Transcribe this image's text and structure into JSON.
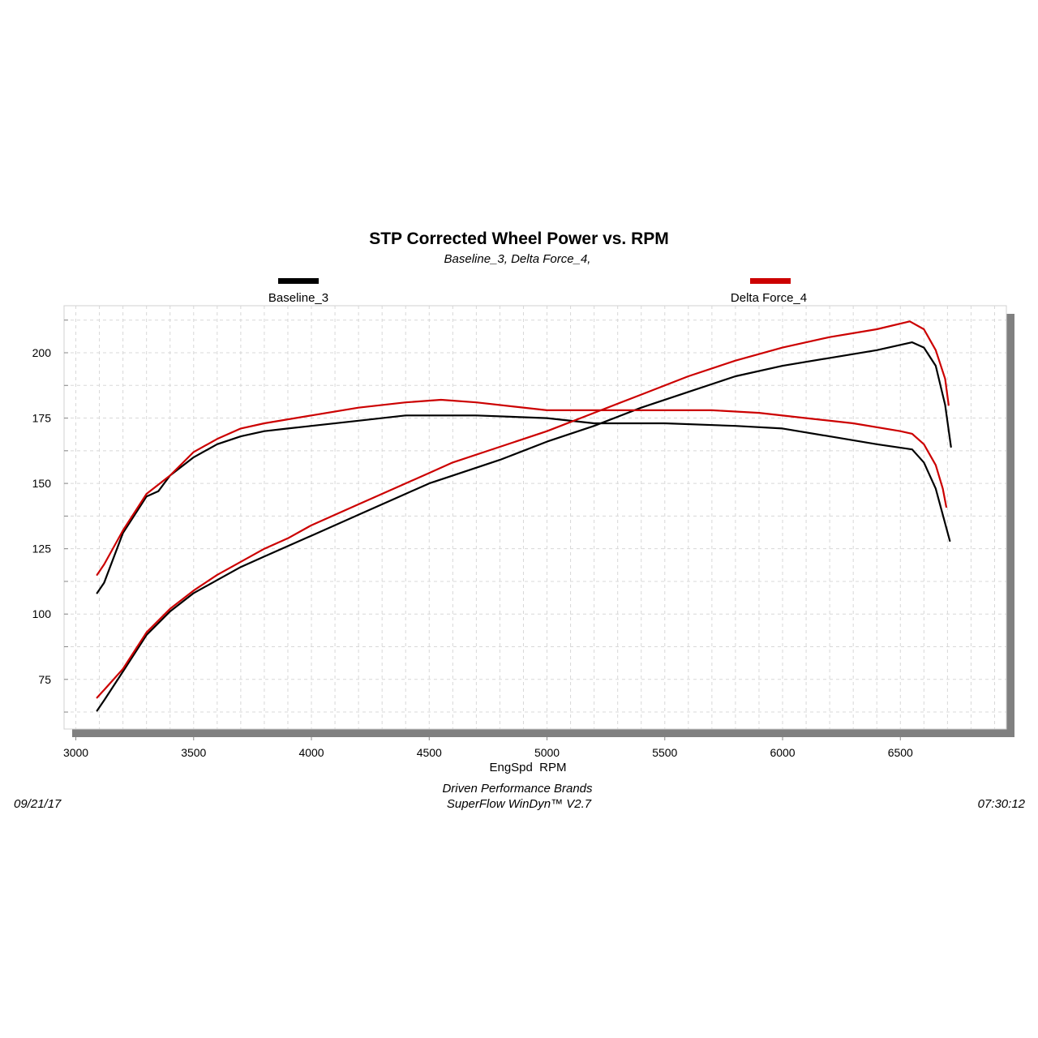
{
  "footer": {
    "date": "09/21/17",
    "time": "07:30:12",
    "company": "Driven Performance Brands",
    "software": "SuperFlow WinDyn™ V2.7"
  },
  "chart_data": {
    "type": "line",
    "title": "STP Corrected Wheel Power vs. RPM",
    "subtitle": "Baseline_3, Delta Force_4,",
    "xlabel": "EngSpd  RPM",
    "ylabel": "",
    "xlim": [
      2950,
      6950
    ],
    "ylim": [
      56,
      218
    ],
    "xticks": [
      3000,
      3500,
      4000,
      4500,
      5000,
      5500,
      6000,
      6500
    ],
    "yticks": [
      75,
      100,
      125,
      150,
      175,
      200
    ],
    "grid": true,
    "legend_placement": "top",
    "colors": {
      "baseline": "#000000",
      "delta": "#cc0000",
      "shadow": "#808080",
      "grid": "#d8d8d8"
    },
    "series": [
      {
        "name": "Baseline_3",
        "curve": "torque",
        "color": "#000000",
        "points": [
          [
            3090,
            108
          ],
          [
            3120,
            112
          ],
          [
            3200,
            131
          ],
          [
            3300,
            145
          ],
          [
            3350,
            147
          ],
          [
            3400,
            153
          ],
          [
            3500,
            160
          ],
          [
            3600,
            165
          ],
          [
            3700,
            168
          ],
          [
            3800,
            170
          ],
          [
            3900,
            171
          ],
          [
            4000,
            172
          ],
          [
            4200,
            174
          ],
          [
            4400,
            176
          ],
          [
            4500,
            176
          ],
          [
            4700,
            176
          ],
          [
            5000,
            175
          ],
          [
            5200,
            173
          ],
          [
            5500,
            173
          ],
          [
            5800,
            172
          ],
          [
            6000,
            171
          ],
          [
            6200,
            168
          ],
          [
            6400,
            165
          ],
          [
            6550,
            163
          ],
          [
            6600,
            158
          ],
          [
            6650,
            148
          ],
          [
            6680,
            138
          ],
          [
            6710,
            128
          ]
        ]
      },
      {
        "name": "Baseline_3",
        "curve": "power",
        "color": "#000000",
        "points": [
          [
            3090,
            63
          ],
          [
            3120,
            67
          ],
          [
            3200,
            78
          ],
          [
            3300,
            92
          ],
          [
            3400,
            101
          ],
          [
            3500,
            108
          ],
          [
            3600,
            113
          ],
          [
            3700,
            118
          ],
          [
            3800,
            122
          ],
          [
            3900,
            126
          ],
          [
            4000,
            130
          ],
          [
            4200,
            138
          ],
          [
            4400,
            146
          ],
          [
            4500,
            150
          ],
          [
            4600,
            153
          ],
          [
            4800,
            159
          ],
          [
            5000,
            166
          ],
          [
            5200,
            172
          ],
          [
            5400,
            179
          ],
          [
            5600,
            185
          ],
          [
            5800,
            191
          ],
          [
            6000,
            195
          ],
          [
            6200,
            198
          ],
          [
            6400,
            201
          ],
          [
            6550,
            204
          ],
          [
            6600,
            202
          ],
          [
            6650,
            195
          ],
          [
            6690,
            180
          ],
          [
            6715,
            164
          ]
        ]
      },
      {
        "name": "Delta Force_4",
        "curve": "torque",
        "color": "#cc0000",
        "points": [
          [
            3090,
            115
          ],
          [
            3120,
            119
          ],
          [
            3200,
            132
          ],
          [
            3300,
            146
          ],
          [
            3400,
            153
          ],
          [
            3500,
            162
          ],
          [
            3600,
            167
          ],
          [
            3700,
            171
          ],
          [
            3800,
            173
          ],
          [
            4000,
            176
          ],
          [
            4200,
            179
          ],
          [
            4400,
            181
          ],
          [
            4550,
            182
          ],
          [
            4700,
            181
          ],
          [
            5000,
            178
          ],
          [
            5300,
            178
          ],
          [
            5500,
            178
          ],
          [
            5700,
            178
          ],
          [
            5900,
            177
          ],
          [
            6100,
            175
          ],
          [
            6300,
            173
          ],
          [
            6500,
            170
          ],
          [
            6550,
            169
          ],
          [
            6600,
            165
          ],
          [
            6650,
            157
          ],
          [
            6680,
            148
          ],
          [
            6695,
            141
          ]
        ]
      },
      {
        "name": "Delta Force_4",
        "curve": "power",
        "color": "#cc0000",
        "points": [
          [
            3090,
            68
          ],
          [
            3120,
            71
          ],
          [
            3200,
            79
          ],
          [
            3300,
            93
          ],
          [
            3400,
            102
          ],
          [
            3500,
            109
          ],
          [
            3600,
            115
          ],
          [
            3700,
            120
          ],
          [
            3800,
            125
          ],
          [
            3900,
            129
          ],
          [
            4000,
            134
          ],
          [
            4200,
            142
          ],
          [
            4400,
            150
          ],
          [
            4500,
            154
          ],
          [
            4600,
            158
          ],
          [
            4800,
            164
          ],
          [
            5000,
            170
          ],
          [
            5200,
            177
          ],
          [
            5400,
            184
          ],
          [
            5600,
            191
          ],
          [
            5800,
            197
          ],
          [
            6000,
            202
          ],
          [
            6200,
            206
          ],
          [
            6400,
            209
          ],
          [
            6540,
            212
          ],
          [
            6600,
            209
          ],
          [
            6650,
            201
          ],
          [
            6690,
            190
          ],
          [
            6705,
            180
          ]
        ]
      }
    ]
  }
}
